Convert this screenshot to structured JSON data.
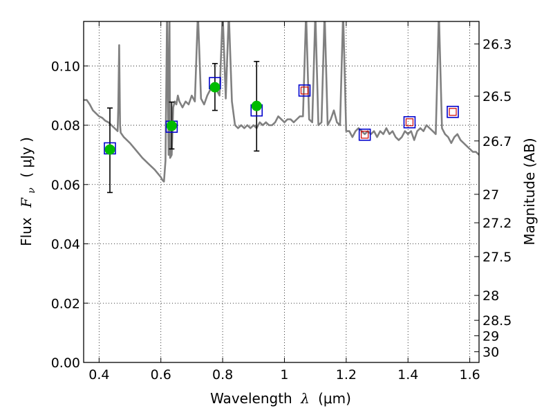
{
  "chart_data": {
    "type": "scatter",
    "xlabel": "Wavelength",
    "xlabel_symbol": "λ",
    "xlabel_unit": "(μm)",
    "ylabel": "Flux",
    "ylabel_symbol": "F",
    "ylabel_subscript": "ν",
    "ylabel_unit": "( μJy )",
    "y2label": "Magnitude (AB)",
    "xlim": [
      0.35,
      1.63
    ],
    "ylim": [
      0.0,
      0.115
    ],
    "grid": true,
    "x_ticks": [
      0.4,
      0.6,
      0.8,
      1.0,
      1.2,
      1.4,
      1.6
    ],
    "x_tick_labels": [
      "0.4",
      "0.6",
      "0.8",
      "1",
      "1.2",
      "1.4",
      "1.6"
    ],
    "y_ticks": [
      0.0,
      0.02,
      0.04,
      0.06,
      0.08,
      0.1
    ],
    "y_tick_labels": [
      "0.00",
      "0.02",
      "0.04",
      "0.06",
      "0.08",
      "0.10"
    ],
    "y2_ticks": [
      {
        "label": "26.3",
        "flux": 0.1074
      },
      {
        "label": "26.5",
        "flux": 0.0898
      },
      {
        "label": "26.7",
        "flux": 0.0747
      },
      {
        "label": "27",
        "flux": 0.0567
      },
      {
        "label": "27.2",
        "flux": 0.0471
      },
      {
        "label": "27.5",
        "flux": 0.0357
      },
      {
        "label": "28",
        "flux": 0.0226
      },
      {
        "label": "28.5",
        "flux": 0.0142
      },
      {
        "label": "29",
        "flux": 0.009
      },
      {
        "label": "30",
        "flux": 0.0036
      }
    ],
    "series": [
      {
        "kind": "spectrum",
        "color": "#808080",
        "x": [
          0.35,
          0.36,
          0.37,
          0.38,
          0.39,
          0.4,
          0.41,
          0.42,
          0.43,
          0.44,
          0.45,
          0.46,
          0.462,
          0.465,
          0.468,
          0.47,
          0.48,
          0.5,
          0.52,
          0.54,
          0.56,
          0.58,
          0.6,
          0.605,
          0.61,
          0.615,
          0.62,
          0.625,
          0.628,
          0.63,
          0.635,
          0.64,
          0.645,
          0.65,
          0.655,
          0.66,
          0.67,
          0.68,
          0.69,
          0.7,
          0.71,
          0.72,
          0.73,
          0.74,
          0.75,
          0.76,
          0.77,
          0.78,
          0.79,
          0.8,
          0.81,
          0.82,
          0.83,
          0.84,
          0.85,
          0.86,
          0.87,
          0.88,
          0.89,
          0.9,
          0.91,
          0.92,
          0.93,
          0.94,
          0.95,
          0.96,
          0.97,
          0.98,
          0.99,
          1.0,
          1.01,
          1.02,
          1.03,
          1.04,
          1.05,
          1.06,
          1.07,
          1.08,
          1.09,
          1.1,
          1.11,
          1.12,
          1.13,
          1.14,
          1.15,
          1.16,
          1.17,
          1.18,
          1.19,
          1.2,
          1.21,
          1.22,
          1.23,
          1.24,
          1.25,
          1.26,
          1.27,
          1.28,
          1.29,
          1.3,
          1.31,
          1.32,
          1.33,
          1.34,
          1.35,
          1.36,
          1.37,
          1.38,
          1.39,
          1.4,
          1.41,
          1.42,
          1.43,
          1.44,
          1.45,
          1.46,
          1.47,
          1.48,
          1.49,
          1.5,
          1.51,
          1.52,
          1.53,
          1.54,
          1.55,
          1.56,
          1.57,
          1.58,
          1.59,
          1.6,
          1.61,
          1.62,
          1.63
        ],
        "y": [
          0.0885,
          0.0885,
          0.087,
          0.085,
          0.084,
          0.083,
          0.0825,
          0.0815,
          0.081,
          0.08,
          0.079,
          0.078,
          0.086,
          0.107,
          0.08,
          0.0775,
          0.076,
          0.074,
          0.0715,
          0.069,
          0.067,
          0.065,
          0.0625,
          0.0615,
          0.061,
          0.068,
          0.118,
          0.07,
          0.118,
          0.069,
          0.07,
          0.086,
          0.088,
          0.087,
          0.09,
          0.088,
          0.086,
          0.088,
          0.087,
          0.09,
          0.088,
          0.118,
          0.089,
          0.087,
          0.09,
          0.092,
          0.094,
          0.092,
          0.09,
          0.118,
          0.089,
          0.118,
          0.088,
          0.08,
          0.079,
          0.08,
          0.079,
          0.08,
          0.079,
          0.08,
          0.079,
          0.081,
          0.08,
          0.081,
          0.08,
          0.08,
          0.081,
          0.083,
          0.082,
          0.081,
          0.082,
          0.082,
          0.081,
          0.082,
          0.083,
          0.083,
          0.118,
          0.082,
          0.081,
          0.118,
          0.08,
          0.081,
          0.118,
          0.08,
          0.082,
          0.085,
          0.081,
          0.08,
          0.118,
          0.078,
          0.078,
          0.076,
          0.078,
          0.079,
          0.078,
          0.077,
          0.078,
          0.077,
          0.078,
          0.076,
          0.078,
          0.077,
          0.079,
          0.077,
          0.078,
          0.076,
          0.075,
          0.076,
          0.078,
          0.077,
          0.078,
          0.075,
          0.078,
          0.079,
          0.078,
          0.08,
          0.079,
          0.078,
          0.077,
          0.118,
          0.079,
          0.077,
          0.076,
          0.074,
          0.076,
          0.077,
          0.075,
          0.074,
          0.073,
          0.072,
          0.071,
          0.071,
          0.07
        ]
      },
      {
        "kind": "observed",
        "color": "#00bb00",
        "points": [
          {
            "x": 0.435,
            "y": 0.0718,
            "err_lo": 0.0145,
            "err_hi": 0.014
          },
          {
            "x": 0.635,
            "y": 0.0798,
            "err_lo": 0.0078,
            "err_hi": 0.008
          },
          {
            "x": 0.775,
            "y": 0.0928,
            "err_lo": 0.0078,
            "err_hi": 0.008
          },
          {
            "x": 0.91,
            "y": 0.0865,
            "err_lo": 0.0152,
            "err_hi": 0.015
          }
        ]
      },
      {
        "kind": "model-broadband",
        "color": "#0000cc",
        "x": [
          0.435,
          0.635,
          0.775,
          0.91
        ],
        "y": [
          0.0722,
          0.0795,
          0.0942,
          0.085
        ]
      },
      {
        "kind": "model-predicted",
        "color": "#0000cc",
        "inner_color": "#cc0000",
        "x": [
          1.065,
          1.26,
          1.405,
          1.545
        ],
        "y": [
          0.0917,
          0.0768,
          0.081,
          0.0845
        ]
      }
    ]
  }
}
